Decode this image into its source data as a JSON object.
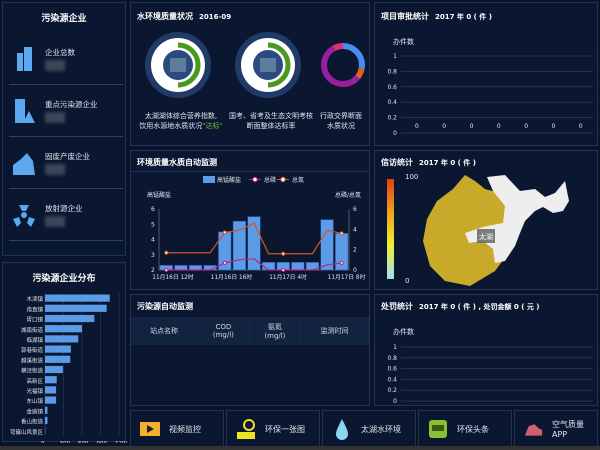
{
  "left_top": {
    "title": "污染源企业",
    "items": [
      {
        "label": "企业总数",
        "icon": "building-icon"
      },
      {
        "label": "重点污染源企业",
        "icon": "warning-building-icon"
      },
      {
        "label": "固废产废企业",
        "icon": "factory-icon"
      },
      {
        "label": "放射源企业",
        "icon": "radiation-icon"
      }
    ]
  },
  "left_bottom": {
    "title": "污染源企业分布"
  },
  "water": {
    "title": "水环境质量状况",
    "date": "2016-09",
    "gauges": [
      {
        "line1": "太湖湖体综合营养指数,",
        "line2": "饮用水源地水质状况",
        "highlight": "\"达标\""
      },
      {
        "line1": "国考、省考及生态文明考核",
        "line2": "断面整体达标率"
      },
      {
        "line1": "行政交界断面",
        "line2": "水质状况"
      }
    ],
    "ring_colors": [
      "#4a8cf0",
      "#e06020",
      "#9a1fa0",
      "#e0307a"
    ]
  },
  "auto_monitor": {
    "title": "环境质量水质自动监测"
  },
  "pollution_monitor": {
    "title": "污染源自动监测",
    "columns": [
      {
        "l1": "站点名称",
        "l2": ""
      },
      {
        "l1": "COD",
        "l2": "(mg/l)"
      },
      {
        "l1": "氨氮",
        "l2": "(mg/l)"
      },
      {
        "l1": "监测时间",
        "l2": ""
      }
    ]
  },
  "project": {
    "title": "项目审批统计",
    "summary": "2017 年 0 ( 件 )",
    "ylabel": "办件数"
  },
  "petition": {
    "title": "信访统计",
    "summary": "2017 年 0 ( 件 )",
    "max": "100",
    "min": "0",
    "region_label": "太湖"
  },
  "penalty": {
    "title": "处罚统计",
    "summary": "2017 年 0 ( 件 ) , 处罚金额 0 ( 元 )",
    "ylabel": "办件数"
  },
  "buttons": [
    {
      "label": "视频监控",
      "icon": "video-icon"
    },
    {
      "label": "环保一张图",
      "icon": "map-pin-icon"
    },
    {
      "label": "太湖水环境",
      "icon": "water-drop-icon"
    },
    {
      "label": "环保头条",
      "icon": "news-icon"
    },
    {
      "label": "空气质量APP",
      "icon": "cloud-icon"
    }
  ],
  "chart_data": [
    {
      "type": "bar",
      "orientation": "horizontal",
      "categories": [
        "木渎镇",
        "甪直镇",
        "胥口镇",
        "城南街道",
        "临湖镇",
        "郭巷街道",
        "越溪街道",
        "横泾街道",
        "高新区",
        "光福镇",
        "东山镇",
        "金庭镇",
        "香山街道",
        "穹窿山风景区"
      ],
      "values": [
        1050,
        1000,
        800,
        600,
        540,
        420,
        410,
        290,
        190,
        180,
        180,
        40,
        40,
        5
      ],
      "xlim": [
        0,
        1200
      ],
      "xticks": [
        "0",
        "300",
        "600",
        "900",
        "1200"
      ],
      "color": "#5b9be8"
    },
    {
      "type": "bar+line",
      "legend": [
        "高锰酸盐",
        "总磷",
        "总氮"
      ],
      "ylabel_left": "高锰酸盐",
      "ylabel_right": "总磷/总氮",
      "ylim_left": [
        2,
        6
      ],
      "ylim_right": [
        0,
        6
      ],
      "yticks_left": [
        "2",
        "3",
        "4",
        "5",
        "6"
      ],
      "yticks_right": [
        "0",
        "2",
        "4",
        "6"
      ],
      "xticks": [
        "11月16日 12时",
        "11月16日 16时",
        "11月17日 4时",
        "11月17日 8时"
      ],
      "series": [
        {
          "name": "高锰酸盐",
          "type": "bar",
          "axis": "left",
          "color": "#5b9be8",
          "values": [
            2.3,
            2.3,
            2.3,
            2.3,
            4.5,
            5.2,
            5.5,
            2.5,
            2.5,
            2.5,
            2.5,
            5.3,
            4.4
          ]
        },
        {
          "name": "总磷",
          "type": "line",
          "axis": "right",
          "color": "#c0208a",
          "values": [
            0,
            0,
            0,
            0,
            0.7,
            1.0,
            1.1,
            0,
            0,
            0,
            0,
            0.5,
            0.7
          ]
        },
        {
          "name": "总氮",
          "type": "line",
          "axis": "right",
          "color": "#d0561e",
          "values": [
            1.7,
            1.7,
            1.7,
            1.7,
            3.7,
            3.9,
            4.6,
            1.6,
            1.6,
            1.6,
            1.6,
            3.9,
            3.6
          ]
        }
      ]
    },
    {
      "type": "bar",
      "title": "项目审批统计",
      "ylim": [
        0,
        1
      ],
      "yticks": [
        "0",
        "0.2",
        "0.4",
        "0.6",
        "0.8",
        "1"
      ],
      "values": [
        0,
        0,
        0,
        0,
        0,
        0,
        0
      ]
    },
    {
      "type": "bar",
      "title": "处罚统计",
      "ylim": [
        0,
        1
      ],
      "yticks": [
        "0",
        "0.2",
        "0.4",
        "0.6",
        "0.8",
        "1"
      ],
      "values": []
    }
  ]
}
